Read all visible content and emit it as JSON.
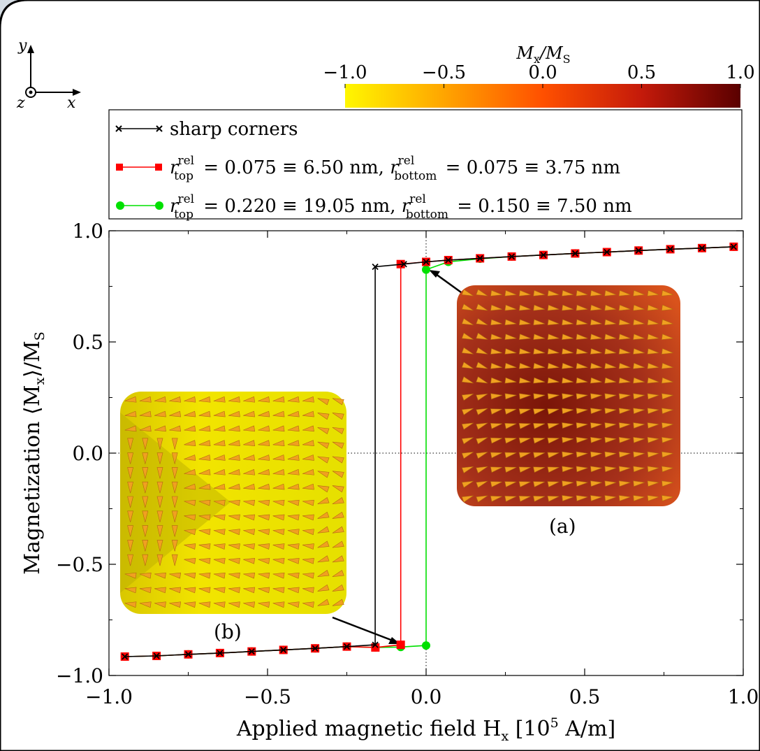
{
  "chart_data": {
    "type": "line",
    "xlabel": "Applied magnetic field H",
    "xlabel_sub": "x",
    "xlabel_unit_pre": "[10",
    "xlabel_unit_exp": "5",
    "xlabel_unit_post": " A/m]",
    "ylabel": "Magnetization ⟨M",
    "ylabel_sub": "x",
    "ylabel_post": "⟩/M",
    "ylabel_sub2": "S",
    "xlim": [
      -1.0,
      1.0
    ],
    "ylim": [
      -1.0,
      1.0
    ],
    "xticks": [
      "−1.0",
      "−0.5",
      "0.0",
      "0.5",
      "1.0"
    ],
    "yticks": [
      "1.0",
      "0.5",
      "0.0",
      "−0.5",
      "−1.0"
    ],
    "legend_position": "top",
    "series": [
      {
        "name": "sharp corners",
        "color": "#000000",
        "marker": "x",
        "x": [
          -0.95,
          -0.85,
          -0.75,
          -0.65,
          -0.55,
          -0.45,
          -0.35,
          -0.25,
          -0.1605,
          -0.1605,
          -0.07,
          0.0,
          0.07,
          0.17,
          0.27,
          0.37,
          0.47,
          0.57,
          0.67,
          0.77,
          0.87,
          0.97
        ],
        "y": [
          -0.915,
          -0.912,
          -0.905,
          -0.899,
          -0.892,
          -0.885,
          -0.878,
          -0.87,
          -0.862,
          0.838,
          0.85,
          0.86,
          0.868,
          0.876,
          0.884,
          0.891,
          0.898,
          0.904,
          0.911,
          0.917,
          0.922,
          0.928
        ]
      },
      {
        "name": "r_top^rel = 0.075 ≡ 6.50 nm, r_bottom^rel = 0.075 ≡ 3.75 nm",
        "color": "#ff0000",
        "marker": "square",
        "x": [
          -0.95,
          -0.85,
          -0.75,
          -0.65,
          -0.55,
          -0.45,
          -0.35,
          -0.25,
          -0.16,
          -0.08,
          -0.08,
          0.0,
          0.07,
          0.17,
          0.27,
          0.37,
          0.47,
          0.57,
          0.67,
          0.77,
          0.87,
          0.97
        ],
        "y": [
          -0.915,
          -0.912,
          -0.905,
          -0.899,
          -0.892,
          -0.885,
          -0.878,
          -0.87,
          -0.874,
          -0.862,
          0.85,
          0.86,
          0.868,
          0.876,
          0.884,
          0.891,
          0.898,
          0.904,
          0.911,
          0.917,
          0.922,
          0.928
        ]
      },
      {
        "name": "r_top^rel = 0.220 ≡ 19.05 nm, r_bottom^rel = 0.150 ≡ 7.50 nm",
        "color": "#00e000",
        "marker": "circle",
        "x": [
          -0.95,
          -0.85,
          -0.75,
          -0.65,
          -0.55,
          -0.45,
          -0.35,
          -0.25,
          -0.16,
          -0.08,
          0.0,
          0.0,
          0.07,
          0.17,
          0.27,
          0.37,
          0.47,
          0.57,
          0.67,
          0.77,
          0.87,
          0.97
        ],
        "y": [
          -0.915,
          -0.912,
          -0.905,
          -0.899,
          -0.892,
          -0.885,
          -0.878,
          -0.87,
          -0.874,
          -0.872,
          -0.865,
          0.825,
          0.86,
          0.874,
          0.884,
          0.891,
          0.898,
          0.904,
          0.911,
          0.917,
          0.922,
          0.928
        ]
      }
    ],
    "legend": {
      "sharp": "sharp corners",
      "red": {
        "r_top": "0.075",
        "r_top_nm": "6.50",
        "r_bottom": "0.075",
        "r_bottom_nm": "3.75"
      },
      "green": {
        "r_top": "0.220",
        "r_top_nm": "19.05",
        "r_bottom": "0.150",
        "r_bottom_nm": "7.50"
      },
      "sup": "rel",
      "sub_top": "top",
      "sub_bottom": "bottom",
      "unit": "nm"
    },
    "colorbar": {
      "label": "M",
      "label_sub": "x",
      "label_post": "/M",
      "label_sub2": "S",
      "ticks": [
        "−1.0",
        "−0.5",
        "0.0",
        "0.5",
        "1.0"
      ],
      "colors": [
        "#fff700",
        "#ffa500",
        "#ff5000",
        "#c41a0a",
        "#5a0000"
      ]
    },
    "insets": [
      {
        "label": "(a)",
        "base_color": "#a5301a",
        "arrow_to": [
          0.0,
          0.825
        ]
      },
      {
        "label": "(b)",
        "base_color": "#e6e000",
        "arrow_to": [
          -0.08,
          -0.872
        ]
      }
    ],
    "axes_label": {
      "y": "y",
      "z": "z",
      "x": "x"
    }
  }
}
